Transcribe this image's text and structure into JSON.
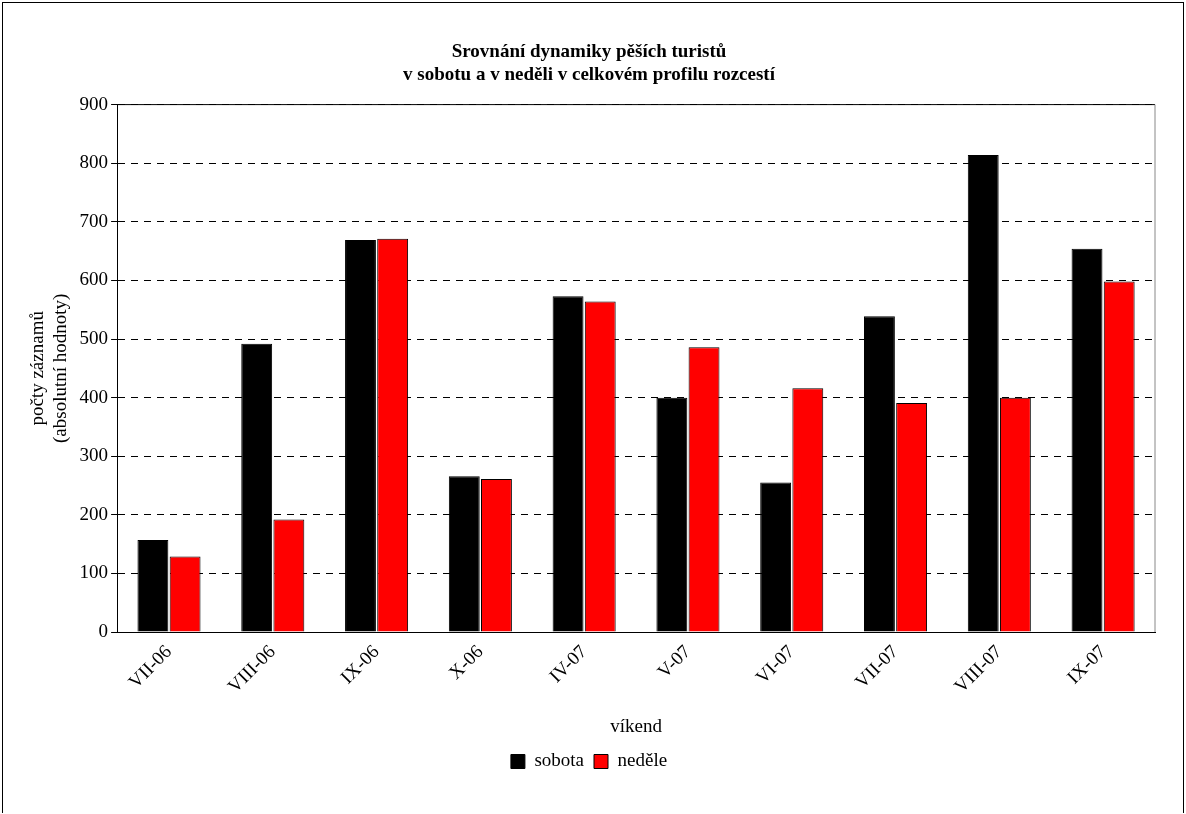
{
  "chart_data": {
    "type": "bar",
    "title": "Srovnání dynamiky pěších turistů\nv sobotu a v neděli v celkovém profilu rozcestí",
    "xlabel": "víkend",
    "ylabel": "počty záznamů\n(absolutní hodnoty)",
    "categories": [
      "VII-06",
      "VIII-06",
      "IX-06",
      "X-06",
      "IV-07",
      "V-07",
      "VI-07",
      "VII-07",
      "VIII-07",
      "IX-07"
    ],
    "series": [
      {
        "name": "sobota",
        "color": "#000000",
        "values": [
          157,
          492,
          669,
          266,
          573,
          400,
          255,
          539,
          814,
          654
        ]
      },
      {
        "name": "neděle",
        "color": "#ff0000",
        "values": [
          129,
          192,
          671,
          261,
          564,
          486,
          416,
          391,
          400,
          598
        ]
      }
    ],
    "ylim": [
      0,
      900
    ],
    "yticks": [
      0,
      100,
      200,
      300,
      400,
      500,
      600,
      700,
      800,
      900
    ],
    "grid": "y",
    "legend": "bottom"
  }
}
